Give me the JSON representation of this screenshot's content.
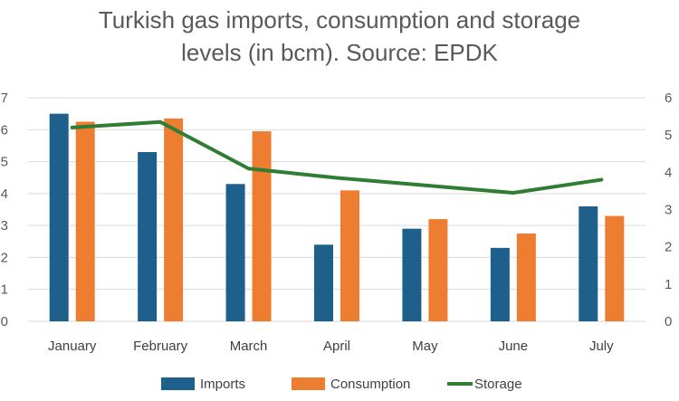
{
  "title_line1": "Turkish gas imports, consumption and storage",
  "title_line2": "levels (in bcm). Source: EPDK",
  "chart_data": {
    "type": "bar",
    "categories": [
      "January",
      "February",
      "March",
      "April",
      "May",
      "June",
      "July"
    ],
    "series": [
      {
        "name": "Imports",
        "type": "bar",
        "axis": "left",
        "color": "#1f5f8b",
        "values": [
          6.5,
          5.3,
          4.3,
          2.4,
          2.9,
          2.3,
          3.6
        ]
      },
      {
        "name": "Consumption",
        "type": "bar",
        "axis": "left",
        "color": "#ed7d31",
        "values": [
          6.25,
          6.35,
          5.95,
          4.1,
          3.2,
          2.75,
          3.3
        ]
      },
      {
        "name": "Storage",
        "type": "line",
        "axis": "right",
        "color": "#2e7d32",
        "values": [
          5.2,
          5.35,
          4.1,
          3.85,
          3.65,
          3.45,
          3.8
        ]
      }
    ],
    "left_axis": {
      "ylim": [
        0,
        7
      ],
      "ticks": [
        "0",
        "1",
        "2",
        "3",
        "4",
        "5",
        "6",
        "7"
      ]
    },
    "right_axis": {
      "ylim": [
        0,
        6
      ],
      "ticks": [
        "0",
        "1",
        "2",
        "3",
        "4",
        "5",
        "6"
      ]
    },
    "grid": true,
    "legend_position": "bottom"
  }
}
